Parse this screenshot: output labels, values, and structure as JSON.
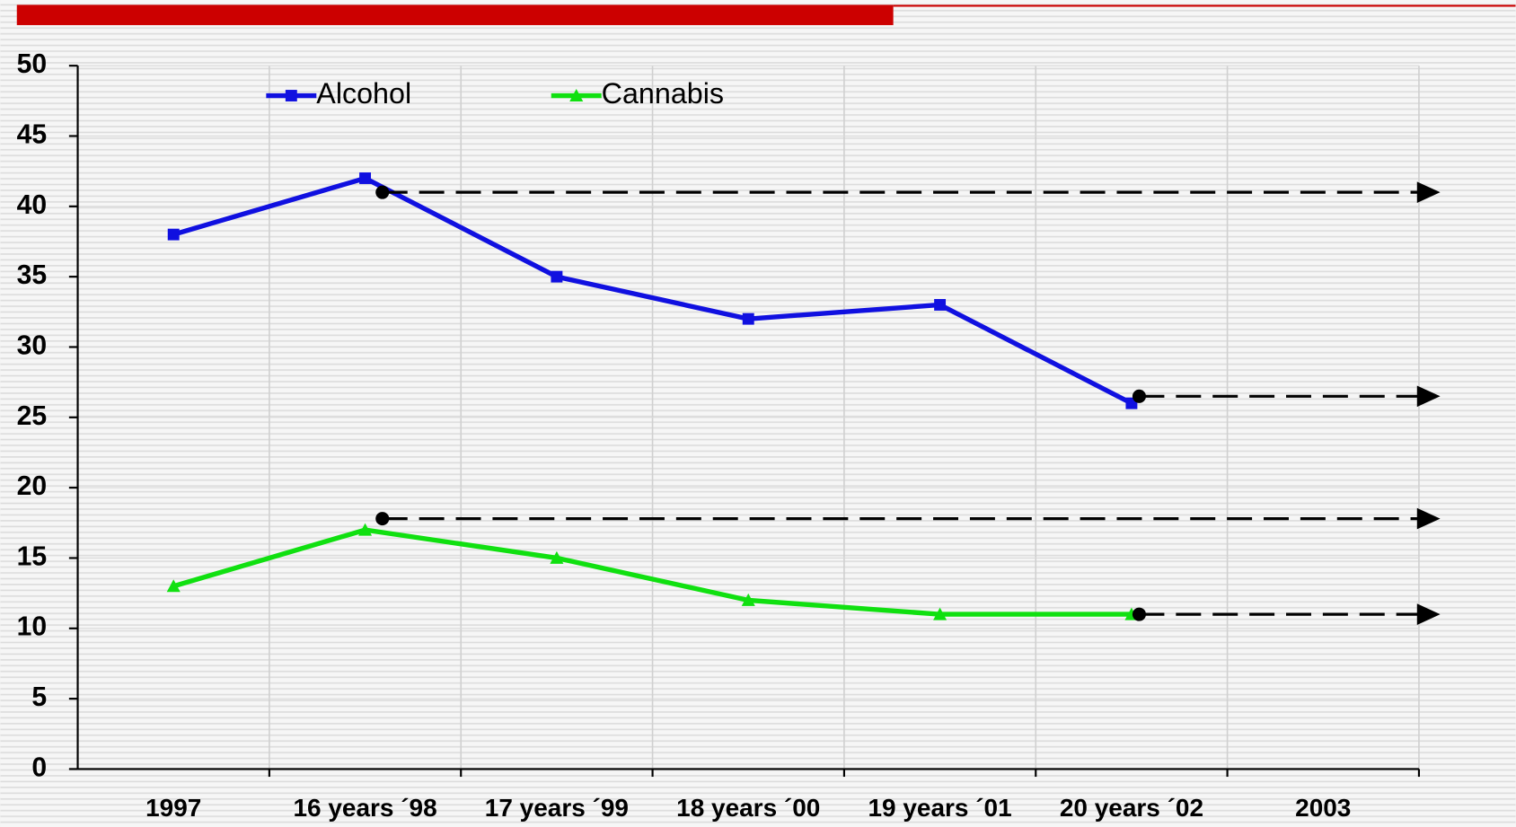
{
  "chart_data": {
    "type": "line",
    "categories": [
      "1997",
      "16 years ´98",
      "17 years ´99",
      "18 years ´00",
      "19 years ´01",
      "20 years ´02",
      "2003"
    ],
    "series": [
      {
        "name": "Alcohol",
        "color": "#1010e0",
        "marker": "square",
        "values": [
          38,
          42,
          35,
          32,
          33,
          26,
          null
        ]
      },
      {
        "name": "Cannabis",
        "color": "#10e010",
        "marker": "triangle",
        "values": [
          13,
          17,
          15,
          12,
          11,
          11,
          null
        ]
      }
    ],
    "reference_lines": [
      41,
      26.5,
      17.8,
      11
    ],
    "ylim": [
      0,
      50
    ],
    "yticks": [
      0,
      5,
      10,
      15,
      20,
      25,
      30,
      35,
      40,
      45,
      50
    ],
    "grid": true
  }
}
